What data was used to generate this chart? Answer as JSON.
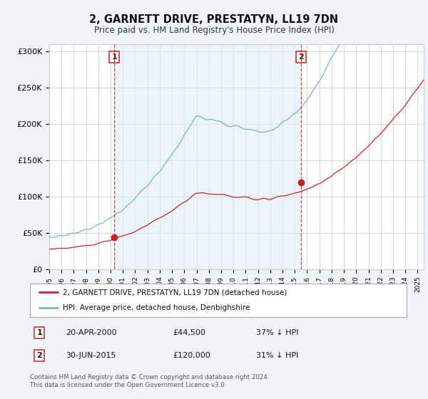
{
  "title": "2, GARNETT DRIVE, PRESTATYN, LL19 7DN",
  "subtitle": "Price paid vs. HM Land Registry's House Price Index (HPI)",
  "ylabel_ticks": [
    "£0",
    "£50K",
    "£100K",
    "£150K",
    "£200K",
    "£250K",
    "£300K"
  ],
  "ytick_values": [
    0,
    50000,
    100000,
    150000,
    200000,
    250000,
    300000
  ],
  "ylim": [
    0,
    310000
  ],
  "xlim_start": 1995.0,
  "xlim_end": 2025.5,
  "hpi_color": "#7ab3d4",
  "price_color": "#cc2222",
  "sale1_date": 2000.3,
  "sale1_price": 44500,
  "sale2_date": 2015.5,
  "sale2_price": 120000,
  "legend_line1": "2, GARNETT DRIVE, PRESTATYN, LL19 7DN (detached house)",
  "legend_line2": "HPI: Average price, detached house, Denbighshire",
  "table_row1": [
    "1",
    "20-APR-2000",
    "£44,500",
    "37% ↓ HPI"
  ],
  "table_row2": [
    "2",
    "30-JUN-2015",
    "£120,000",
    "31% ↓ HPI"
  ],
  "footer": "Contains HM Land Registry data © Crown copyright and database right 2024.\nThis data is licensed under the Open Government Licence v3.0.",
  "background_color": "#f0f4f8",
  "plot_bg_color": "#ffffff",
  "shade_color": "#ddeef8"
}
